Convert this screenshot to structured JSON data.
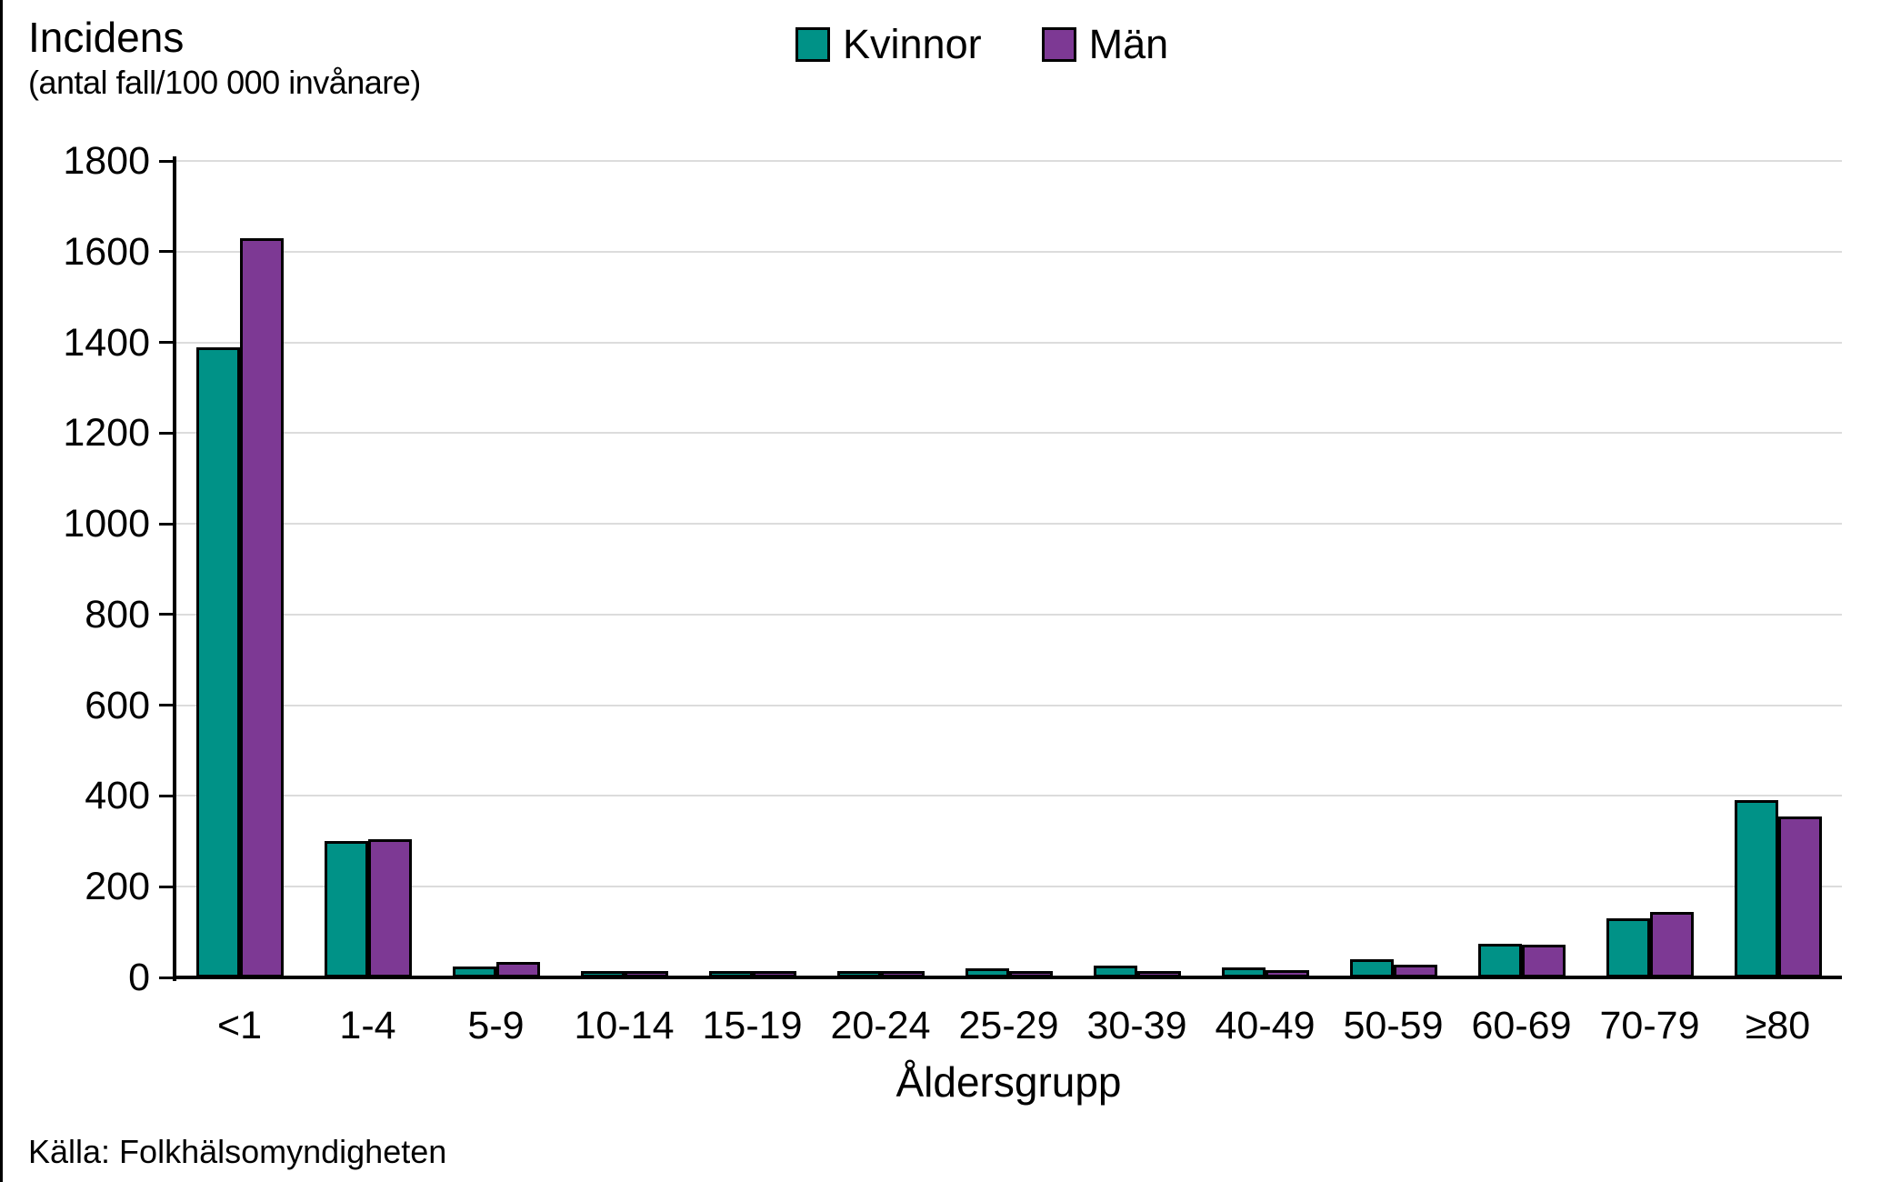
{
  "title": "Incidens",
  "subtitle": "(antal fall/100 000 invånare)",
  "source": "Källa: Folkhälsomyndigheten",
  "legend": {
    "items": [
      {
        "label": "Kvinnor",
        "color": "#009287"
      },
      {
        "label": "Män",
        "color": "#7D3994"
      }
    ]
  },
  "colors": {
    "kvinnor": "#009287",
    "man": "#7D3994",
    "gridline": "#dcdcdc",
    "axis": "#000000"
  },
  "chart_data": {
    "type": "bar",
    "title": "Incidens",
    "subtitle": "(antal fall/100 000 invånare)",
    "xlabel": "Åldersgrupp",
    "ylabel": "Incidens (antal fall/100 000 invånare)",
    "categories": [
      "<1",
      "1-4",
      "5-9",
      "10-14",
      "15-19",
      "20-24",
      "25-29",
      "30-39",
      "40-49",
      "50-59",
      "60-69",
      "70-79",
      "≥80"
    ],
    "series": [
      {
        "name": "Kvinnor",
        "color": "#009287",
        "values": [
          1390,
          300,
          25,
          13,
          15,
          13,
          20,
          27,
          23,
          40,
          75,
          130,
          390
        ]
      },
      {
        "name": "Män",
        "color": "#7D3994",
        "values": [
          1630,
          305,
          35,
          15,
          8,
          9,
          7,
          12,
          17,
          28,
          72,
          145,
          355
        ]
      }
    ],
    "ylim": [
      0,
      1800
    ],
    "ytick_step": 200,
    "yticks": [
      0,
      200,
      400,
      600,
      800,
      1000,
      1200,
      1400,
      1600,
      1800
    ],
    "grid": true,
    "legend_position": "top-center",
    "source": "Källa: Folkhälsomyndigheten"
  }
}
